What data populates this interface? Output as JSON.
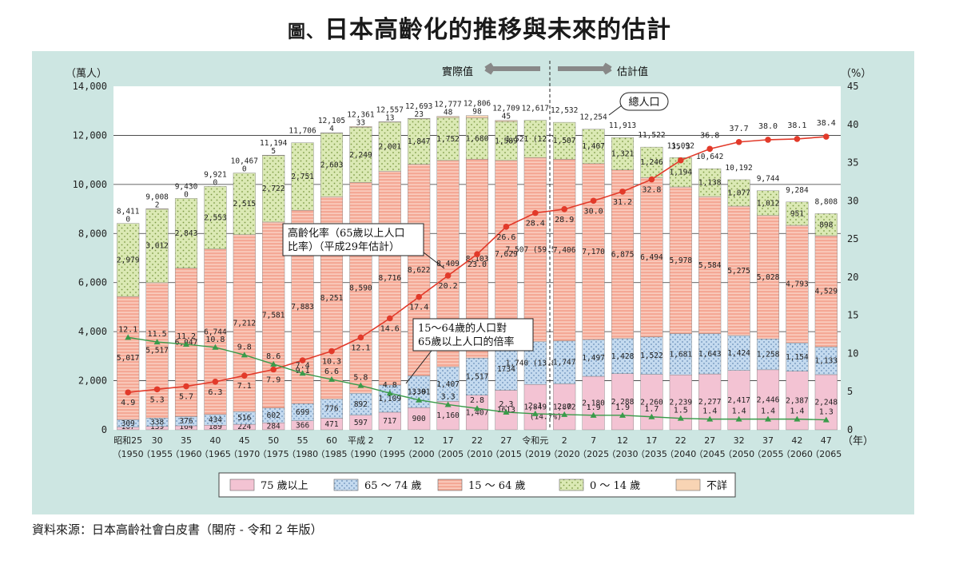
{
  "page": {
    "title_mark": "圖、",
    "title": "日本高齡化的推移與未來的估計",
    "source": "資料來源：日本高齡社會白皮書（閣府 - 令和 2 年版）"
  },
  "chart_data": {
    "type": "bar",
    "stacked": true,
    "y_left": {
      "unit": "（萬人）",
      "range": [
        0,
        14000
      ],
      "ticks": [
        "0",
        "2,000",
        "4,000",
        "6,000",
        "8,000",
        "10,000",
        "12,000",
        "14,000"
      ]
    },
    "y_right": {
      "unit": "（%）",
      "range": [
        0,
        45
      ],
      "ticks": [
        "0",
        "5",
        "10",
        "15",
        "20",
        "25",
        "30",
        "35",
        "40",
        "45"
      ]
    },
    "x_unit": "（年）",
    "categories": [
      {
        "era": "昭和25",
        "year": "（1950"
      },
      {
        "era": "30",
        "year": "（1955"
      },
      {
        "era": "35",
        "year": "（1960"
      },
      {
        "era": "40",
        "year": "（1965"
      },
      {
        "era": "45",
        "year": "（1970"
      },
      {
        "era": "50",
        "year": "（1975"
      },
      {
        "era": "55",
        "year": "（1980"
      },
      {
        "era": "60",
        "year": "（1985"
      },
      {
        "era": "平成 2",
        "year": "（1990"
      },
      {
        "era": "7",
        "year": "（1995"
      },
      {
        "era": "12",
        "year": "（2000"
      },
      {
        "era": "17",
        "year": "（2005"
      },
      {
        "era": "22",
        "year": "（2010"
      },
      {
        "era": "27",
        "year": "（2015"
      },
      {
        "era": "令和元",
        "year": "（2019"
      },
      {
        "era": "2",
        "year": "（2020"
      },
      {
        "era": "7",
        "year": "（2025"
      },
      {
        "era": "12",
        "year": "（2030"
      },
      {
        "era": "17",
        "year": "（2035"
      },
      {
        "era": "22",
        "year": "（2040"
      },
      {
        "era": "27",
        "year": "（2045"
      },
      {
        "era": "32",
        "year": "（2050"
      },
      {
        "era": "37",
        "year": "（2055"
      },
      {
        "era": "42",
        "year": "（2060"
      },
      {
        "era": "47",
        "year": "（2065"
      }
    ],
    "series": [
      {
        "name": "75 歲以上",
        "color": "#f3c3d3",
        "values": [
          107,
          139,
          164,
          189,
          224,
          284,
          366,
          471,
          597,
          717,
          900,
          1160,
          1407,
          1613,
          1849,
          1872,
          2180,
          2288,
          2260,
          2239,
          2277,
          2417,
          2446,
          2387,
          2248
        ],
        "labels": [
          "107",
          "139",
          "164",
          "189",
          "224",
          "284",
          "366",
          "471",
          "597",
          "717",
          "900",
          "1,160",
          "1,407",
          "1613",
          "1,849",
          "1,872",
          "2,180",
          "2,288",
          "2,260",
          "2,239",
          "2,277",
          "2,417",
          "2,446",
          "2,387",
          "2,248"
        ]
      },
      {
        "name": "65 ～ 74 歲",
        "color": "#c4daef",
        "values": [
          309,
          338,
          376,
          434,
          516,
          602,
          699,
          776,
          892,
          1109,
          1301,
          1407,
          1517,
          1734,
          1740,
          1747,
          1497,
          1428,
          1522,
          1681,
          1643,
          1424,
          1258,
          1154,
          1133
        ],
        "labels": [
          "309",
          "338",
          "376",
          "434",
          "516",
          "602",
          "699",
          "776",
          "892",
          "1,109",
          "1,301",
          "1,407",
          "1,517",
          "1734",
          "1,740 (13.8%)",
          "1,747",
          "1,497",
          "1,428",
          "1,522",
          "1,681",
          "1,643",
          "1,424",
          "1,258",
          "1,154",
          "1,133"
        ]
      },
      {
        "name": "15 ～ 64 歲",
        "color": "#f4a895",
        "values": [
          5017,
          5517,
          6047,
          6744,
          7212,
          7581,
          7883,
          8251,
          8590,
          8716,
          8622,
          8409,
          8103,
          7629,
          7507,
          7406,
          7170,
          6875,
          6494,
          5978,
          5584,
          5275,
          5028,
          4793,
          4529
        ],
        "labels": [
          "5,017",
          "5,517",
          "6,047",
          "6,744",
          "7,212",
          "7,581",
          "7,883",
          "8,251",
          "8,590",
          "8,716",
          "8,622",
          "8,409",
          "8,103",
          "7,629",
          "7,507 (59.5%)",
          "7,406",
          "7,170",
          "6,875",
          "6,494",
          "5,978",
          "5,584",
          "5,275",
          "5,028",
          "4,793",
          "4,529"
        ]
      },
      {
        "name": "0 ～ 14 歲",
        "color": "#dbe9b4",
        "values": [
          2979,
          3012,
          2843,
          2553,
          2515,
          2722,
          2751,
          2603,
          2249,
          2001,
          1847,
          1752,
          1680,
          1589,
          1521,
          1507,
          1407,
          1321,
          1246,
          1194,
          1138,
          1077,
          1012,
          951,
          898
        ],
        "labels": [
          "2,979",
          "3,012",
          "2,843",
          "2,553",
          "2,515",
          "2,722",
          "2,751",
          "2,603",
          "2,249",
          "2,001",
          "1,847",
          "1,752",
          "1,680",
          "1,589",
          "1,521 (12.1%)",
          "1,507",
          "1,407",
          "1,321",
          "1,246",
          "1,194",
          "1,138",
          "1,077",
          "1,012",
          "951",
          "898"
        ]
      },
      {
        "name": "不詳",
        "color": "#f8d4b4",
        "values": [
          0,
          2,
          0,
          0,
          0,
          5,
          0,
          4,
          33,
          13,
          23,
          48,
          98,
          45,
          0,
          0,
          0,
          0,
          0,
          0,
          0,
          0,
          0,
          0,
          0
        ],
        "labels": [
          "0",
          "2",
          "0",
          "0",
          "0",
          "5",
          "",
          "4",
          "33",
          "13",
          "23",
          "48",
          "98",
          "45",
          "",
          "",
          "",
          "",
          "",
          "",
          "",
          "",
          "",
          "",
          ""
        ]
      }
    ],
    "totals": [
      "8,411",
      "9,008",
      "9,430",
      "9,921",
      "10,467",
      "11,194",
      "11,706",
      "12,105",
      "12,361",
      "12,557",
      "12,693",
      "12,777",
      "12,806",
      "12,709",
      "12,617",
      "12,532",
      "12,254",
      "11,913",
      "11,522",
      "11,092",
      "10,642",
      "10,192",
      "9,744",
      "9,284",
      "8,808"
    ],
    "aging_rate": {
      "name": "高齡化率（65歲以上人口比率）（平成29年估計）",
      "values": [
        4.9,
        5.3,
        5.7,
        6.3,
        7.1,
        7.9,
        9.1,
        10.3,
        12.1,
        14.6,
        17.4,
        20.2,
        23.0,
        26.6,
        28.4,
        28.9,
        30.0,
        31.2,
        32.8,
        35.3,
        36.8,
        37.7,
        38.0,
        38.1,
        38.4
      ],
      "labels": [
        "4.9",
        "5.3",
        "5.7",
        "6.3",
        "7.1",
        "7.9",
        "9.1",
        "10.3",
        "12.1",
        "14.6",
        "17.4",
        "20.2",
        "23.0",
        "26.6",
        "28.4",
        "28.9",
        "30.0",
        "31.2",
        "32.8",
        "35.3",
        "36.8",
        "37.7",
        "38.0",
        "38.1",
        "38.4"
      ]
    },
    "support_ratio": {
      "name": "15～64歲的人口對65歲以上人口的倍率",
      "values": [
        12.1,
        11.5,
        11.2,
        10.8,
        9.8,
        8.6,
        7.4,
        6.6,
        5.8,
        4.8,
        3.9,
        3.3,
        2.8,
        2.3,
        2.1,
        2.0,
        1.9,
        1.9,
        1.7,
        1.5,
        1.4,
        1.4,
        1.4,
        1.4,
        1.3
      ],
      "labels": [
        "12.1",
        "11.5",
        "11.2",
        "10.8",
        "9.8",
        "8.6",
        "7.4",
        "6.6",
        "5.8",
        "4.8",
        "3.9",
        "3.3",
        "2.8",
        "2.3",
        "2.1",
        "2.0",
        "1.9",
        "1.9",
        "1.7",
        "1.5",
        "1.4",
        "1.4",
        "1.4",
        "1.4",
        "1.3"
      ]
    },
    "annotations": {
      "actual": "實際值",
      "estimate": "估計值",
      "total_population": "總人口",
      "rate_line1": "高齡化率（65歲以上人口",
      "rate_line2": "比率）（平成29年估計）",
      "ratio_line1": "15～64歲的人口對",
      "ratio_line2": "65歲以上人口的倍率",
      "pct_2019_75": "(14.7%)"
    },
    "legend_placement": "bottom"
  }
}
